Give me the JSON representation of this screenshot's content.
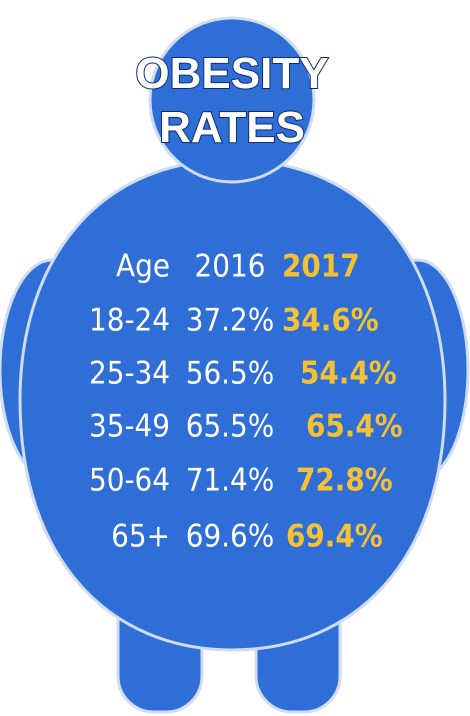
{
  "header": {
    "title_line1": "OBESITY",
    "title_line2": "RATES"
  },
  "table": {
    "columns": [
      "Age",
      "2016",
      "2017"
    ],
    "rows": [
      [
        "18-24",
        "37.2%",
        "34.6%"
      ],
      [
        "25-34",
        "56.5%",
        "54.4%"
      ],
      [
        "35-49",
        "65.5%",
        "65.4%"
      ],
      [
        "50-64",
        "71.4%",
        "72.8%"
      ],
      [
        "65+",
        "69.6%",
        "69.4%"
      ]
    ]
  }
}
